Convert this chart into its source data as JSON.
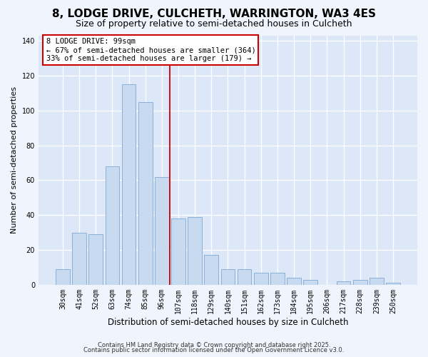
{
  "title1": "8, LODGE DRIVE, CULCHETH, WARRINGTON, WA3 4ES",
  "title2": "Size of property relative to semi-detached houses in Culcheth",
  "xlabel": "Distribution of semi-detached houses by size in Culcheth",
  "ylabel": "Number of semi-detached properties",
  "categories": [
    "30sqm",
    "41sqm",
    "52sqm",
    "63sqm",
    "74sqm",
    "85sqm",
    "96sqm",
    "107sqm",
    "118sqm",
    "129sqm",
    "140sqm",
    "151sqm",
    "162sqm",
    "173sqm",
    "184sqm",
    "195sqm",
    "206sqm",
    "217sqm",
    "228sqm",
    "239sqm",
    "250sqm"
  ],
  "values": [
    9,
    30,
    29,
    68,
    115,
    105,
    62,
    38,
    39,
    17,
    9,
    9,
    7,
    7,
    4,
    3,
    0,
    2,
    3,
    4,
    1
  ],
  "bar_color": "#c8daf0",
  "bar_edge_color": "#8ab0d8",
  "vline_x": 6.5,
  "vline_color": "#cc0000",
  "annotation_title": "8 LODGE DRIVE: 99sqm",
  "annotation_line1": "← 67% of semi-detached houses are smaller (364)",
  "annotation_line2": "33% of semi-detached houses are larger (179) →",
  "annotation_box_edge": "#cc0000",
  "ylim": [
    0,
    143
  ],
  "yticks": [
    0,
    20,
    40,
    60,
    80,
    100,
    120,
    140
  ],
  "background_color": "#f0f4fc",
  "footer1": "Contains HM Land Registry data © Crown copyright and database right 2025.",
  "footer2": "Contains public sector information licensed under the Open Government Licence v3.0.",
  "title1_fontsize": 11,
  "title2_fontsize": 9,
  "grid_color": "#ffffff",
  "axes_background": "#dce8f8"
}
